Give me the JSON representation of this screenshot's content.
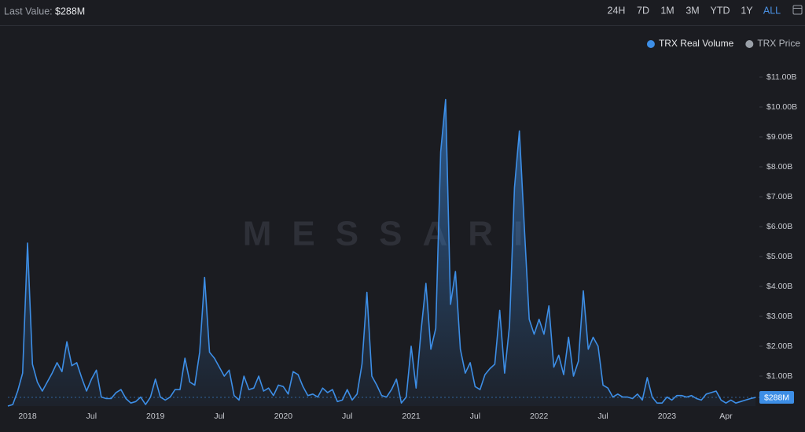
{
  "header": {
    "last_value_label": "Last Value:",
    "ranges": [
      "24H",
      "7D",
      "1M",
      "3M",
      "YTD",
      "1Y",
      "ALL"
    ],
    "active_range": 6
  },
  "chart_data": {
    "type": "area",
    "watermark": "MESSARI",
    "categories": [
      null,
      null,
      null,
      null,
      "2018",
      null,
      null,
      null,
      null,
      null,
      null,
      null,
      null,
      null,
      null,
      null,
      null,
      "Jul",
      null,
      null,
      null,
      null,
      null,
      null,
      null,
      null,
      null,
      null,
      null,
      null,
      "2019",
      null,
      null,
      null,
      null,
      null,
      null,
      null,
      null,
      null,
      null,
      null,
      null,
      "Jul",
      null,
      null,
      null,
      null,
      null,
      null,
      null,
      null,
      null,
      null,
      null,
      null,
      "2020",
      null,
      null,
      null,
      null,
      null,
      null,
      null,
      null,
      null,
      null,
      null,
      null,
      "Jul",
      null,
      null,
      null,
      null,
      null,
      null,
      null,
      null,
      null,
      null,
      null,
      null,
      "2021",
      null,
      null,
      null,
      null,
      null,
      null,
      null,
      null,
      null,
      null,
      null,
      null,
      "Jul",
      null,
      null,
      null,
      null,
      null,
      null,
      null,
      null,
      null,
      null,
      null,
      null,
      "2022",
      null,
      null,
      null,
      null,
      null,
      null,
      null,
      null,
      null,
      null,
      null,
      null,
      "Jul",
      null,
      null,
      null,
      null,
      null,
      null,
      null,
      null,
      null,
      null,
      null,
      null,
      "2023",
      null,
      null,
      null,
      null,
      null,
      null,
      null,
      null,
      null,
      null,
      null,
      "Apr",
      null,
      null,
      null,
      null,
      null,
      null
    ],
    "series": [
      {
        "name": "TRX Real Volume",
        "color": "#3d8ee6",
        "values": [
          0,
          0.05,
          0.5,
          1.1,
          5.45,
          1.4,
          0.8,
          0.5,
          0.8,
          1.1,
          1.45,
          1.15,
          2.15,
          1.35,
          1.45,
          0.95,
          0.5,
          0.9,
          1.2,
          0.3,
          0.25,
          0.25,
          0.45,
          0.55,
          0.25,
          0.1,
          0.15,
          0.3,
          0.05,
          0.3,
          0.9,
          0.3,
          0.2,
          0.3,
          0.55,
          0.55,
          1.6,
          0.8,
          0.7,
          1.8,
          4.3,
          1.8,
          1.6,
          1.3,
          1.0,
          1.2,
          0.35,
          0.2,
          1.0,
          0.55,
          0.6,
          1.0,
          0.5,
          0.6,
          0.35,
          0.7,
          0.65,
          0.4,
          1.15,
          1.05,
          0.65,
          0.35,
          0.4,
          0.3,
          0.6,
          0.45,
          0.55,
          0.15,
          0.2,
          0.55,
          0.2,
          0.4,
          1.4,
          3.8,
          1.0,
          0.7,
          0.35,
          0.3,
          0.55,
          0.9,
          0.1,
          0.3,
          2.0,
          0.6,
          2.5,
          4.1,
          1.9,
          2.6,
          8.5,
          10.25,
          3.4,
          4.5,
          1.9,
          1.1,
          1.45,
          0.65,
          0.55,
          1.05,
          1.25,
          1.4,
          3.2,
          1.1,
          2.7,
          7.3,
          9.2,
          6.0,
          2.9,
          2.4,
          2.9,
          2.4,
          3.35,
          1.3,
          1.7,
          1.05,
          2.3,
          1.0,
          1.5,
          3.85,
          1.9,
          2.3,
          2.0,
          0.7,
          0.6,
          0.3,
          0.4,
          0.3,
          0.3,
          0.25,
          0.4,
          0.2,
          0.95,
          0.3,
          0.1,
          0.1,
          0.3,
          0.2,
          0.35,
          0.35,
          0.3,
          0.35,
          0.25,
          0.2,
          0.4,
          0.45,
          0.5,
          0.2,
          0.1,
          0.2,
          0.1,
          0.15,
          0.2,
          0.25,
          0.288
        ],
        "value_labels": [
          null,
          null,
          null,
          null,
          null,
          null,
          null,
          null,
          null,
          null,
          null,
          null,
          null,
          null,
          null,
          null,
          null,
          null,
          null,
          null,
          null,
          null,
          null,
          null,
          null,
          null,
          null,
          null,
          null,
          null,
          null,
          null,
          null,
          null,
          null,
          null,
          null,
          null,
          null,
          null,
          null,
          null,
          null,
          null,
          null,
          null,
          null,
          null,
          null,
          null,
          null,
          null,
          null,
          null,
          null,
          null,
          null,
          null,
          null,
          null,
          null,
          null,
          null,
          null,
          null,
          null,
          null,
          null,
          null,
          null,
          null,
          null,
          null,
          null,
          null,
          null,
          null,
          null,
          null,
          null,
          null,
          null,
          null,
          null,
          null,
          null,
          null,
          null,
          null,
          null,
          null,
          null,
          null,
          null,
          null,
          null,
          null,
          null,
          null,
          null,
          null,
          null,
          null,
          null,
          null,
          null,
          null,
          null,
          null,
          null,
          null,
          null,
          null,
          null,
          null,
          null,
          null,
          null,
          null,
          null,
          null,
          null,
          null,
          null,
          null,
          null,
          null,
          null,
          null,
          null,
          null,
          null,
          null,
          null,
          null,
          null,
          null,
          null,
          null,
          null,
          null,
          null,
          null,
          null,
          null,
          null,
          null,
          null,
          null,
          null,
          null,
          null,
          "$288M"
        ]
      },
      {
        "name": "TRX Price",
        "color": "#9aa0a8",
        "visible": false
      }
    ],
    "ylim": [
      0,
      11.3
    ],
    "yticks": [
      {
        "value": 1,
        "label": "$1.00B"
      },
      {
        "value": 2,
        "label": "$2.00B"
      },
      {
        "value": 3,
        "label": "$3.00B"
      },
      {
        "value": 4,
        "label": "$4.00B"
      },
      {
        "value": 5,
        "label": "$5.00B"
      },
      {
        "value": 6,
        "label": "$6.00B"
      },
      {
        "value": 7,
        "label": "$7.00B"
      },
      {
        "value": 8,
        "label": "$8.00B"
      },
      {
        "value": 9,
        "label": "$9.00B"
      },
      {
        "value": 10,
        "label": "$10.00B"
      },
      {
        "value": 11,
        "label": "$11.00B"
      }
    ],
    "grid": false,
    "legend": "top-right"
  }
}
